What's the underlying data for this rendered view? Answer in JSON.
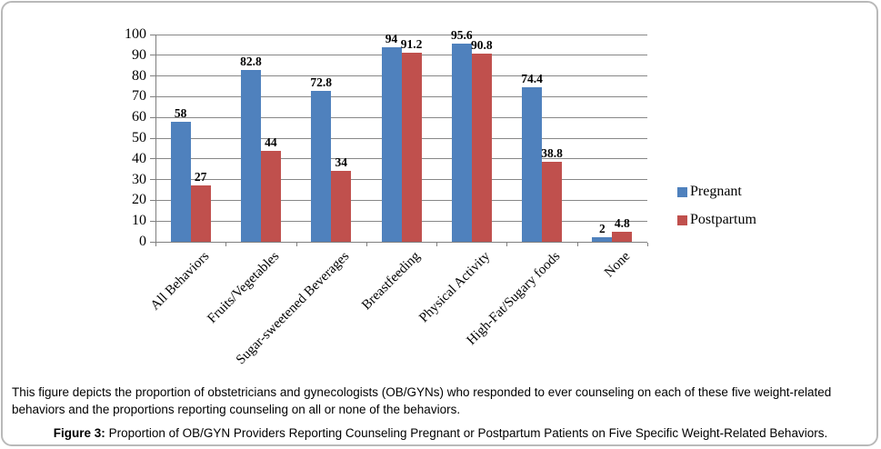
{
  "chart_data": {
    "type": "bar",
    "title": "",
    "xlabel": "",
    "ylabel": "",
    "categories": [
      "All Behaviors",
      "Fruits/Vegetables",
      "Sugar-sweetened Beverages",
      "Breastfeeding",
      "Physical Activity",
      "High-Fat/Sugary foods",
      "None"
    ],
    "series": [
      {
        "name": "Pregnant",
        "color": "#4F81BD",
        "values": [
          58,
          82.8,
          72.8,
          94,
          95.6,
          74.4,
          2
        ]
      },
      {
        "name": "Postpartum",
        "color": "#C0504D",
        "values": [
          27,
          44,
          34,
          91.2,
          90.8,
          38.8,
          4.8
        ]
      }
    ],
    "ylim": [
      0,
      100
    ],
    "ytick_step": 10,
    "grid": true,
    "legend_position": "right",
    "bar_value_labels": true
  },
  "caption": {
    "description": "This figure depicts the proportion of obstetricians and gynecologists (OB/GYNs) who responded to ever counseling on each of these five weight-related behaviors and the proportions reporting counseling on all or none of the behaviors.",
    "figure_label": "Figure 3:",
    "figure_title": " Proportion of OB/GYN Providers Reporting Counseling Pregnant or Postpartum Patients on Five Specific Weight-Related Behaviors."
  },
  "colors": {
    "gridline": "#878787",
    "axis": "#7f7f7f",
    "pregnant_blue": "#4F81BD",
    "postpartum_red": "#C0504D",
    "card_border": "#b9b9b9"
  }
}
